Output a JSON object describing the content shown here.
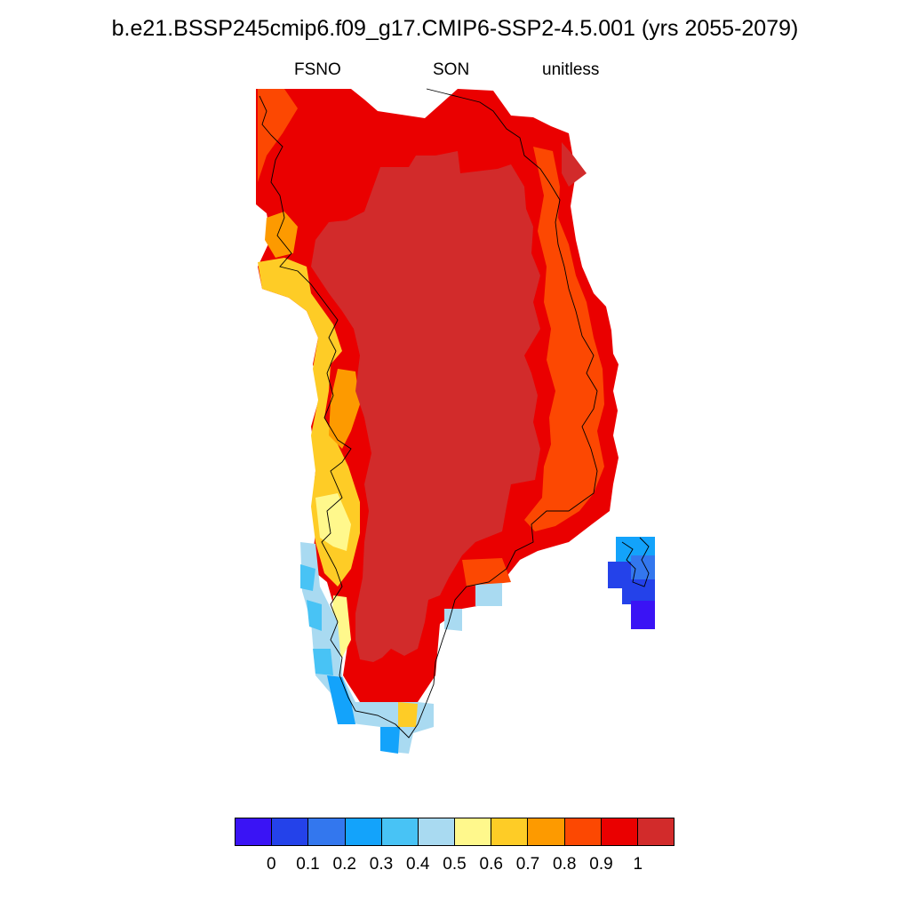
{
  "title": "b.e21.BSSP245cmip6.f09_g17.CMIP6-SSP2-4.5.001 (yrs 2055-2079)",
  "variable": "FSNO",
  "season": "SON",
  "units": "unitless",
  "colorbar": {
    "colors": [
      "#3a13f5",
      "#2442ea",
      "#3377ee",
      "#13a3fb",
      "#48c3f5",
      "#a9daf1",
      "#fff88c",
      "#fecc26",
      "#fd9a00",
      "#fc4802",
      "#ea0000",
      "#d22b2b"
    ],
    "labels": [
      "0",
      "0.1",
      "0.2",
      "0.3",
      "0.4",
      "0.5",
      "0.6",
      "0.7",
      "0.8",
      "0.9",
      "1"
    ]
  },
  "map": {
    "region": "Greenland",
    "coastline_color": "#000000",
    "interior_value_range": "> 1",
    "margin_values": "0.9-1",
    "southwest_coast_values": "0.3-0.7",
    "iceland_fragment_values": "0.1-0.3"
  }
}
